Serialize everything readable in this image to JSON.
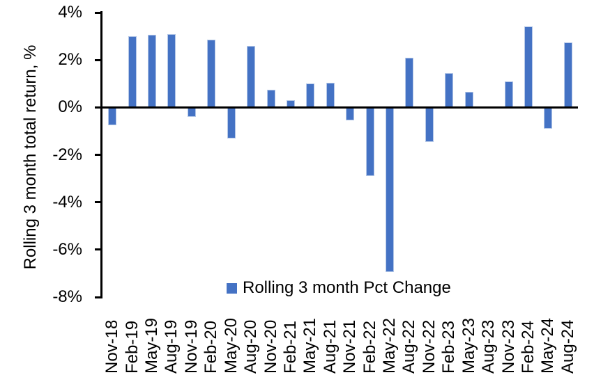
{
  "y_axis": {
    "title": "Rolling 3 month total return, %"
  },
  "legend": {
    "label": "Rolling 3 month Pct Change",
    "swatch_color": "#4472C4"
  },
  "chart_data": {
    "type": "bar",
    "title": "",
    "xlabel": "",
    "ylabel": "Rolling 3 month total return, %",
    "categories": [
      "Nov-18",
      "Feb-19",
      "May-19",
      "Aug-19",
      "Nov-19",
      "Feb-20",
      "May-20",
      "Aug-20",
      "Nov-20",
      "Feb-21",
      "May-21",
      "Aug-21",
      "Nov-21",
      "Feb-22",
      "May-22",
      "Aug-22",
      "Nov-22",
      "Feb-23",
      "May-23",
      "Aug-23",
      "Nov-23",
      "Feb-24",
      "May-24",
      "Aug-24"
    ],
    "series": [
      {
        "name": "Rolling 3 month Pct Change",
        "values": [
          -0.75,
          3.0,
          3.05,
          3.1,
          -0.4,
          2.85,
          -1.3,
          2.6,
          0.75,
          0.3,
          1.0,
          1.05,
          -0.55,
          -2.9,
          -6.95,
          2.1,
          -1.45,
          1.45,
          0.65,
          0.0,
          1.1,
          3.4,
          -0.9,
          2.75
        ]
      }
    ],
    "ylim": [
      -8,
      4
    ],
    "ytick_step": 2,
    "ytick_labels": [
      "4%",
      "2%",
      "0%",
      "-2%",
      "-4%",
      "-6%",
      "-8%"
    ],
    "ytick_values": [
      4,
      2,
      0,
      -2,
      -4,
      -6,
      -8
    ],
    "grid": false,
    "legend_position": "bottom-center",
    "colors": {
      "bar_fill": "#4472C4",
      "bar_border": "#B4C7E7",
      "axis": "#000000",
      "text": "#000000",
      "background": "#FFFFFF"
    }
  }
}
